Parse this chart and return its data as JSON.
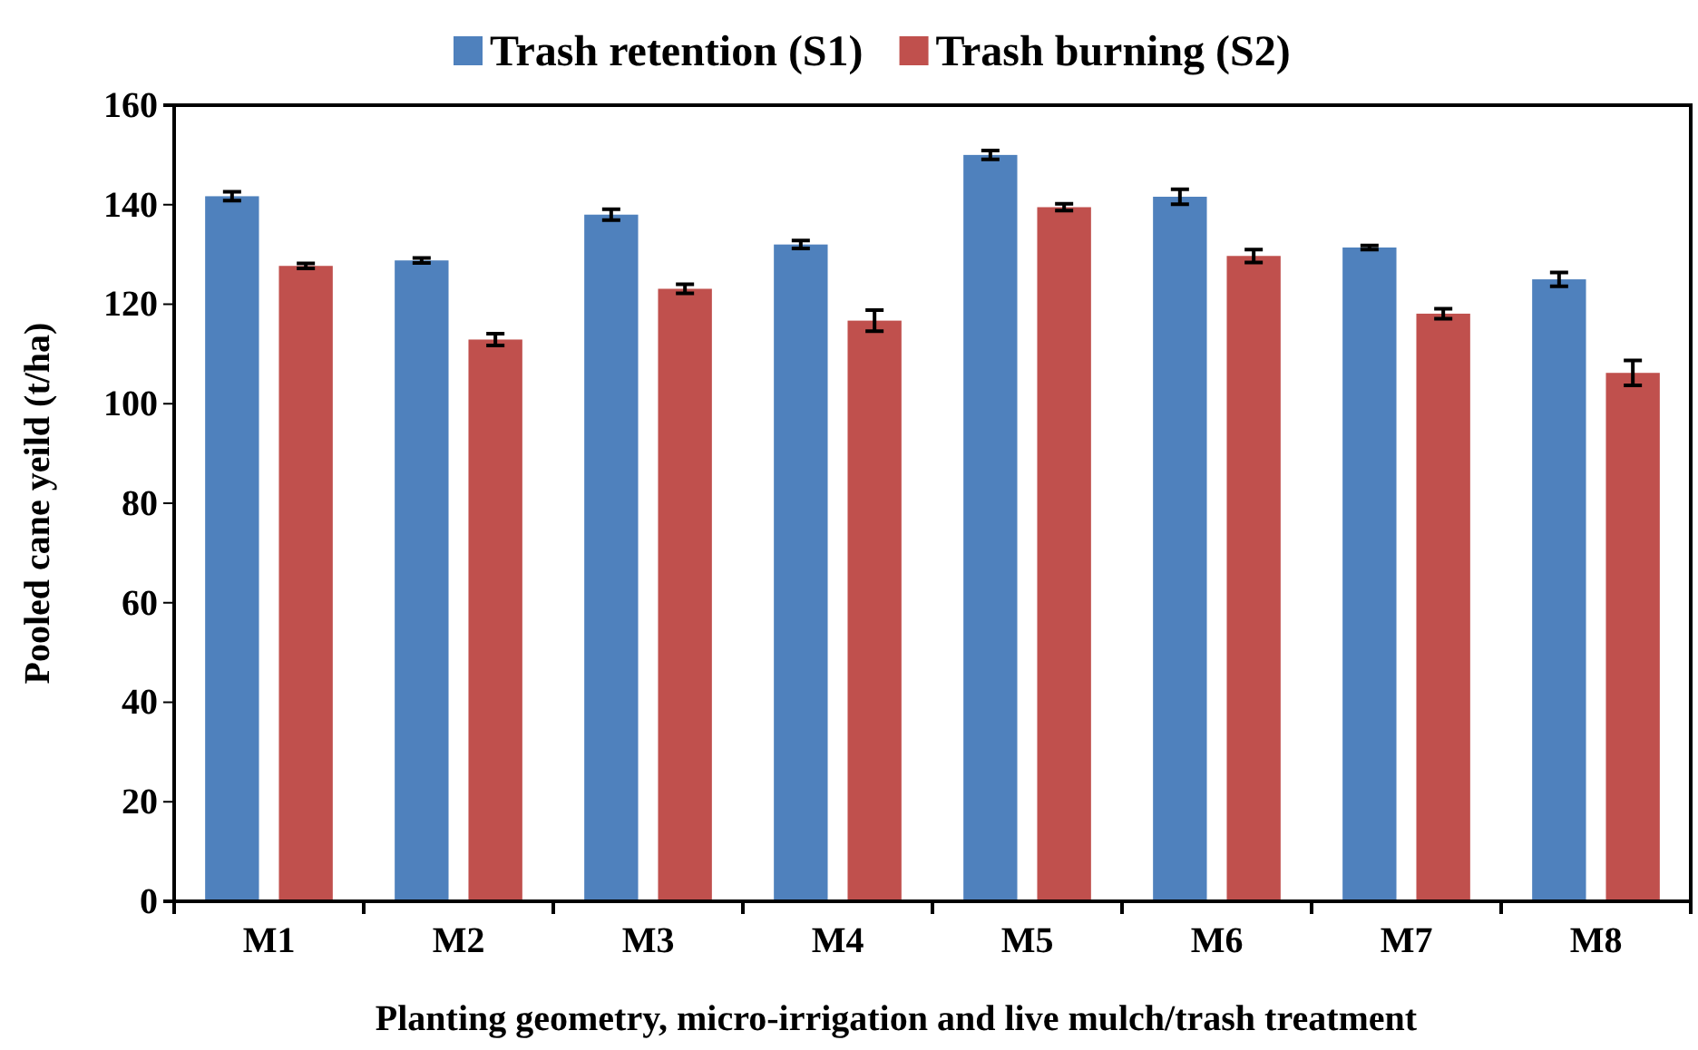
{
  "chart_data": {
    "type": "bar",
    "categories": [
      "M1",
      "M2",
      "M3",
      "M4",
      "M5",
      "M6",
      "M7",
      "M8"
    ],
    "series": [
      {
        "name": "Trash retention (S1)",
        "color": "#4f81bd",
        "values": [
          141.7,
          128.8,
          138.0,
          132.0,
          150.0,
          141.6,
          131.4,
          125.0
        ],
        "errors": [
          0.9,
          0.5,
          1.1,
          0.8,
          0.9,
          1.5,
          0.4,
          1.4
        ]
      },
      {
        "name": "Trash burning (S2)",
        "color": "#c0504d",
        "values": [
          127.7,
          112.9,
          123.1,
          116.7,
          139.5,
          129.7,
          118.1,
          106.2
        ],
        "errors": [
          0.5,
          1.2,
          0.9,
          2.1,
          0.7,
          1.3,
          1.0,
          2.5
        ]
      }
    ],
    "ylim": [
      0,
      160
    ],
    "yticks": [
      0,
      20,
      40,
      60,
      80,
      100,
      120,
      140,
      160
    ],
    "xlabel": "Planting geometry, micro-irrigation and live mulch/trash treatment",
    "ylabel": "Pooled cane yeild (t/ha)",
    "legend": "top",
    "grid": false
  }
}
